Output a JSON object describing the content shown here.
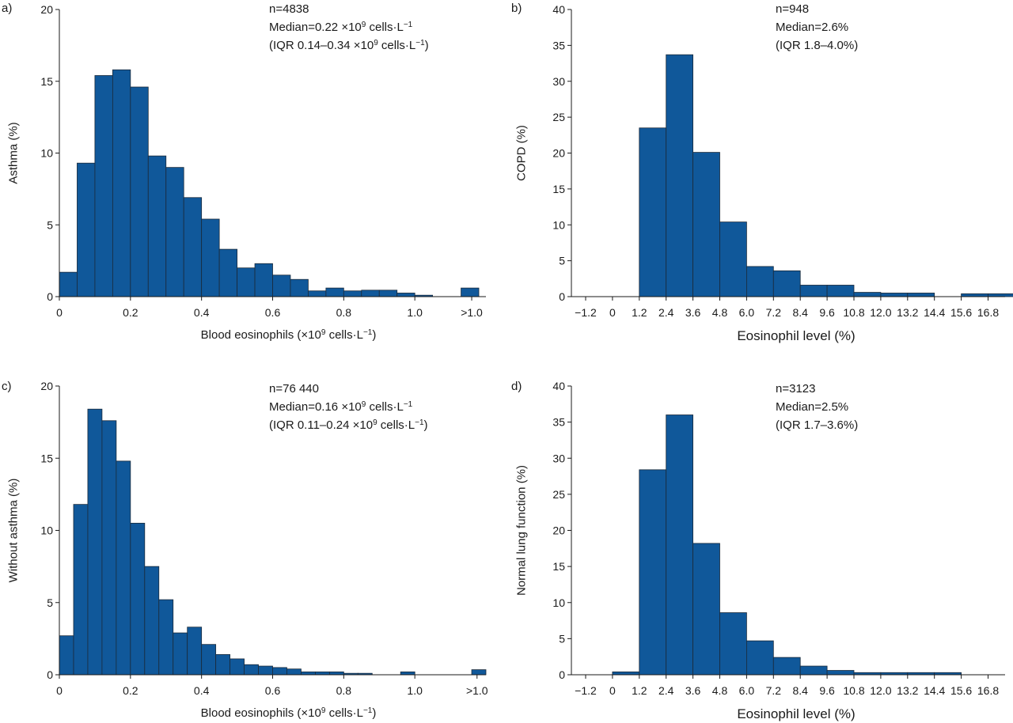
{
  "colors": {
    "bar": "#10589a",
    "bar_edge": "#1b2a3a",
    "axis": "#1a1a1a"
  },
  "chart_data": [
    {
      "id": "a",
      "panel_label": "a)",
      "type": "bar",
      "layout": "histogram-continuous",
      "ylabel": "Asthma (%)",
      "xlabel": "Blood eosinophils (×10⁹ cells·L⁻¹)",
      "ylim": [
        0,
        20
      ],
      "yticks": [
        "0",
        "5",
        "10",
        "15",
        "20"
      ],
      "xlim": [
        0,
        1.2
      ],
      "xticks": [
        {
          "v": 0,
          "label": "0"
        },
        {
          "v": 0.2,
          "label": "0.2"
        },
        {
          "v": 0.4,
          "label": "0.4"
        },
        {
          "v": 0.6,
          "label": "0.6"
        },
        {
          "v": 0.8,
          "label": "0.8"
        },
        {
          "v": 1.0,
          "label": "1.0"
        },
        {
          "v": 1.16,
          "label": ">1.0"
        }
      ],
      "bin_width": 0.05,
      "bins": [
        0,
        0.05,
        0.1,
        0.15,
        0.2,
        0.25,
        0.3,
        0.35,
        0.4,
        0.45,
        0.5,
        0.55,
        0.6,
        0.65,
        0.7,
        0.75,
        0.8,
        0.85,
        0.9,
        0.95,
        1.0,
        1.05,
        1.1
      ],
      "values": [
        1.7,
        9.3,
        15.4,
        15.8,
        14.6,
        9.8,
        9.0,
        6.9,
        5.4,
        3.3,
        2.0,
        2.3,
        1.5,
        1.2,
        0.4,
        0.6,
        0.4,
        0.45,
        0.45,
        0.25,
        0.1,
        0.0,
        0.0
      ],
      "overflow_bin": {
        "start": 1.13,
        "value": 0.6
      },
      "annotation": [
        "n=4838",
        "Median=0.22 ×10⁹ cells·L⁻¹",
        "(IQR 0.14–0.34 ×10⁹ cells·L⁻¹)"
      ]
    },
    {
      "id": "b",
      "panel_label": "b)",
      "type": "bar",
      "layout": "histogram-categorical",
      "ylabel": "COPD (%)",
      "xlabel": "Eosinophil level (%)",
      "ylim": [
        0,
        40
      ],
      "yticks": [
        "0",
        "5",
        "10",
        "15",
        "20",
        "25",
        "30",
        "35",
        "40"
      ],
      "categories": [
        "−1.2",
        "0",
        "1.2",
        "2.4",
        "3.6",
        "4.8",
        "6.0",
        "7.2",
        "8.4",
        "9.6",
        "10.8",
        "12.0",
        "13.2",
        "14.4",
        "15.6",
        "16.8"
      ],
      "values": [
        0,
        0,
        23.5,
        33.7,
        20.1,
        10.4,
        4.2,
        3.6,
        1.6,
        1.6,
        0.6,
        0.5,
        0.5,
        0,
        0.4,
        0.4
      ],
      "annotation": [
        "n=948",
        "Median=2.6%",
        "(IQR 1.8–4.0%)"
      ]
    },
    {
      "id": "c",
      "panel_label": "c)",
      "type": "bar",
      "layout": "histogram-continuous",
      "ylabel": "Without asthma (%)",
      "xlabel": "Blood eosinophils (×10⁹ cells·L⁻¹)",
      "ylim": [
        0,
        20
      ],
      "yticks": [
        "0",
        "5",
        "10",
        "15",
        "20"
      ],
      "xlim": [
        0,
        1.2
      ],
      "xticks": [
        {
          "v": 0,
          "label": "0"
        },
        {
          "v": 0.2,
          "label": "0.2"
        },
        {
          "v": 0.4,
          "label": "0.4"
        },
        {
          "v": 0.6,
          "label": "0.6"
        },
        {
          "v": 0.8,
          "label": "0.8"
        },
        {
          "v": 1.0,
          "label": "1.0"
        },
        {
          "v": 1.175,
          "label": ">1.0"
        }
      ],
      "bin_width": 0.04,
      "bins": [
        0,
        0.04,
        0.08,
        0.12,
        0.16,
        0.2,
        0.24,
        0.28,
        0.32,
        0.36,
        0.4,
        0.44,
        0.48,
        0.52,
        0.56,
        0.6,
        0.64,
        0.68,
        0.72,
        0.76,
        0.8,
        0.84,
        0.88,
        0.92,
        0.96,
        1.0
      ],
      "values": [
        2.7,
        11.8,
        18.4,
        17.6,
        14.8,
        10.5,
        7.5,
        5.2,
        2.9,
        3.3,
        2.1,
        1.4,
        1.1,
        0.7,
        0.6,
        0.5,
        0.4,
        0.2,
        0.2,
        0.2,
        0.1,
        0.1,
        0.0,
        0.0,
        0.2,
        0.0
      ],
      "overflow_bin": {
        "start": 1.16,
        "value": 0.35
      },
      "annotation": [
        "n=76 440",
        "Median=0.16 ×10⁹ cells·L⁻¹",
        "(IQR 0.11–0.24 ×10⁹ cells·L⁻¹)"
      ]
    },
    {
      "id": "d",
      "panel_label": "d)",
      "type": "bar",
      "layout": "histogram-categorical",
      "ylabel": "Normal lung function (%)",
      "xlabel": "Eosinophil level (%)",
      "ylim": [
        0,
        40
      ],
      "yticks": [
        "0",
        "5",
        "10",
        "15",
        "20",
        "25",
        "30",
        "35",
        "40"
      ],
      "categories": [
        "−1.2",
        "0",
        "1.2",
        "2.4",
        "3.6",
        "4.8",
        "6.0",
        "7.2",
        "8.4",
        "9.6",
        "10.8",
        "12.0",
        "13.2",
        "14.4",
        "15.6",
        "16.8"
      ],
      "values": [
        0,
        0.4,
        28.4,
        36.0,
        18.2,
        8.6,
        4.7,
        2.4,
        1.2,
        0.6,
        0.3,
        0.3,
        0.3,
        0.3,
        0,
        0
      ],
      "annotation": [
        "n=3123",
        "Median=2.5%",
        "(IQR 1.7–3.6%)"
      ]
    }
  ]
}
